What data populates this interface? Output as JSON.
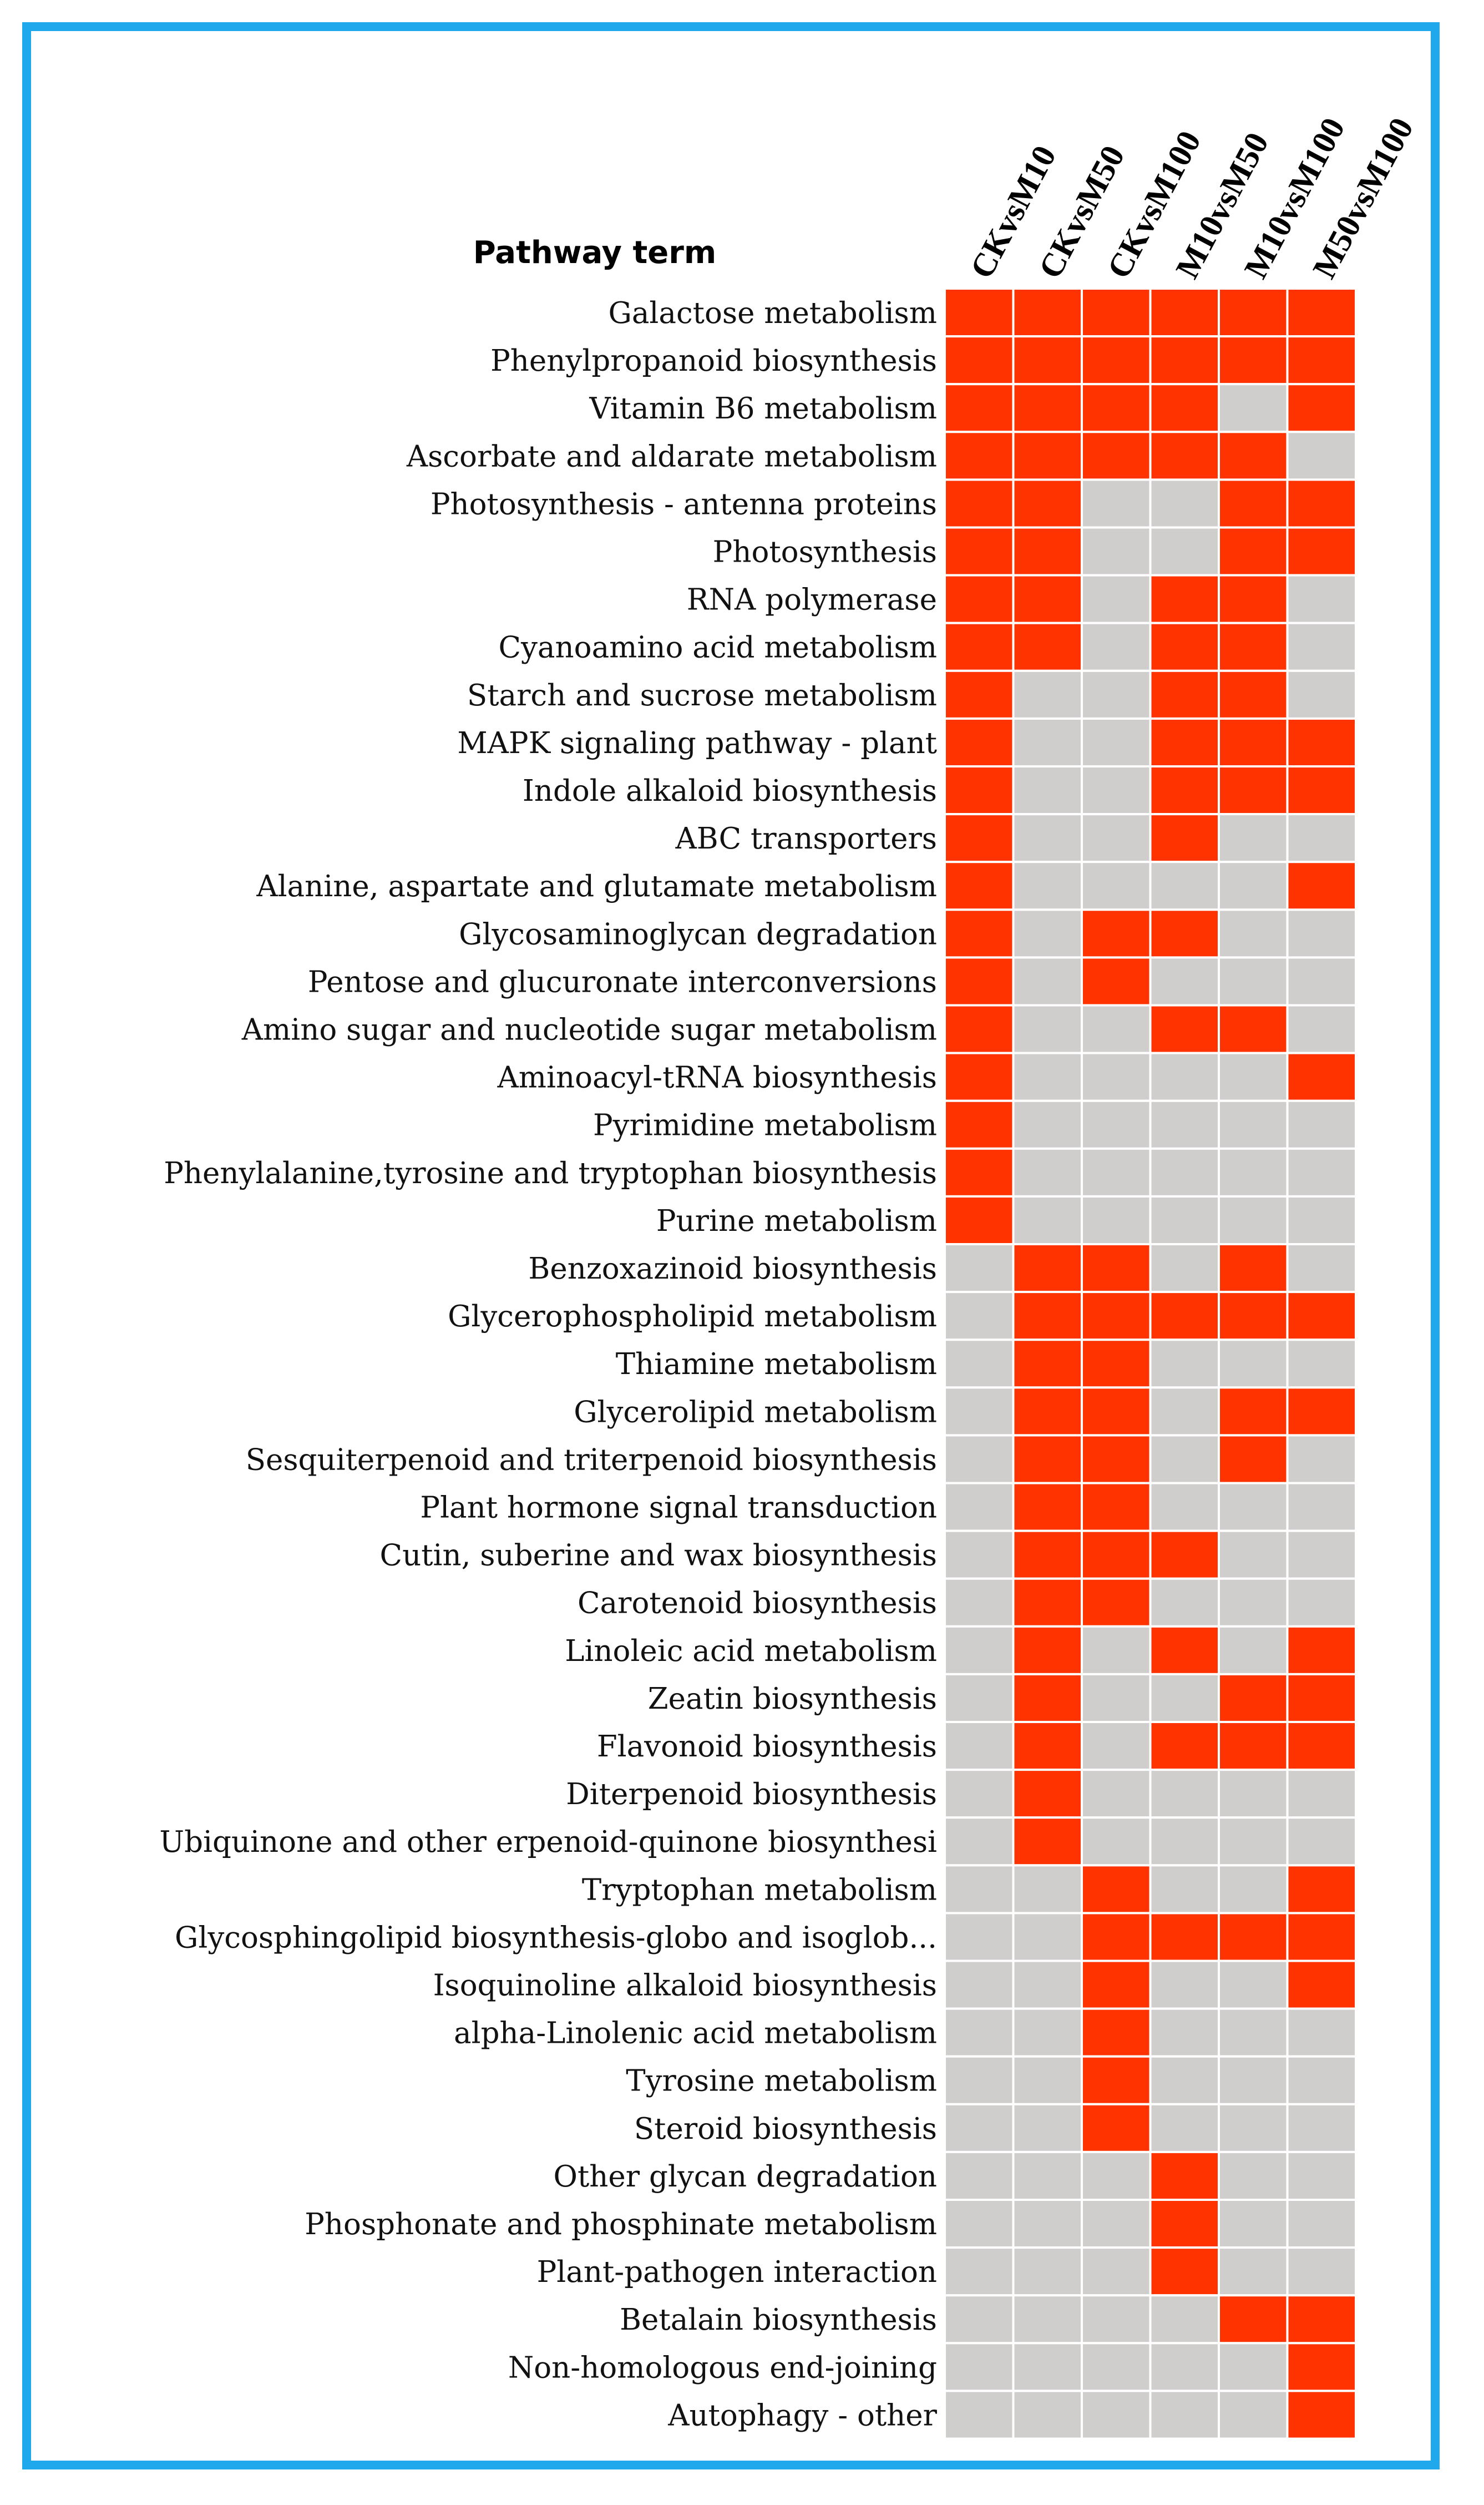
{
  "chart_data": {
    "type": "heatmap",
    "title": "",
    "row_header": "Pathway term",
    "columns": [
      "CKvsM10",
      "CKvsM50",
      "CKvsM100",
      "M10vsM50",
      "M10vsM100",
      "M50vsM100"
    ],
    "rows": [
      "Galactose metabolism",
      "Phenylpropanoid biosynthesis",
      "Vitamin B6 metabolism",
      "Ascorbate and aldarate metabolism",
      "Photosynthesis - antenna proteins",
      "Photosynthesis",
      "RNA polymerase",
      "Cyanoamino acid metabolism",
      "Starch and sucrose metabolism",
      "MAPK signaling pathway - plant",
      "Indole alkaloid biosynthesis",
      "ABC transporters",
      "Alanine, aspartate and glutamate metabolism",
      "Glycosaminoglycan degradation",
      "Pentose and glucuronate interconversions",
      "Amino sugar and nucleotide sugar metabolism",
      "Aminoacyl-tRNA biosynthesis",
      "Pyrimidine metabolism",
      "Phenylalanine,tyrosine and tryptophan biosynthesis",
      "Purine metabolism",
      "Benzoxazinoid biosynthesis",
      "Glycerophospholipid metabolism",
      "Thiamine metabolism",
      "Glycerolipid metabolism",
      "Sesquiterpenoid and triterpenoid biosynthesis",
      "Plant hormone signal transduction",
      "Cutin, suberine and wax biosynthesis",
      "Carotenoid biosynthesis",
      "Linoleic acid metabolism",
      "Zeatin biosynthesis",
      "Flavonoid biosynthesis",
      "Diterpenoid biosynthesis",
      "Ubiquinone and other erpenoid-quinone biosynthesi",
      "Tryptophan metabolism",
      "Glycosphingolipid biosynthesis-globo and isoglob...",
      "Isoquinoline alkaloid biosynthesis",
      "alpha-Linolenic acid metabolism",
      "Tyrosine metabolism",
      "Steroid biosynthesis",
      "Other glycan degradation",
      "Phosphonate and phosphinate metabolism",
      "Plant-pathogen interaction",
      "Betalain biosynthesis",
      "Non-homologous end-joining",
      "Autophagy - other"
    ],
    "values": [
      [
        1,
        1,
        1,
        1,
        1,
        1
      ],
      [
        1,
        1,
        1,
        1,
        1,
        1
      ],
      [
        1,
        1,
        1,
        1,
        0,
        1
      ],
      [
        1,
        1,
        1,
        1,
        1,
        0
      ],
      [
        1,
        1,
        0,
        0,
        1,
        1
      ],
      [
        1,
        1,
        0,
        0,
        1,
        1
      ],
      [
        1,
        1,
        0,
        1,
        1,
        0
      ],
      [
        1,
        1,
        0,
        1,
        1,
        0
      ],
      [
        1,
        0,
        0,
        1,
        1,
        0
      ],
      [
        1,
        0,
        0,
        1,
        1,
        1
      ],
      [
        1,
        0,
        0,
        1,
        1,
        1
      ],
      [
        1,
        0,
        0,
        1,
        0,
        0
      ],
      [
        1,
        0,
        0,
        0,
        0,
        1
      ],
      [
        1,
        0,
        1,
        1,
        0,
        0
      ],
      [
        1,
        0,
        1,
        0,
        0,
        0
      ],
      [
        1,
        0,
        0,
        1,
        1,
        0
      ],
      [
        1,
        0,
        0,
        0,
        0,
        1
      ],
      [
        1,
        0,
        0,
        0,
        0,
        0
      ],
      [
        1,
        0,
        0,
        0,
        0,
        0
      ],
      [
        1,
        0,
        0,
        0,
        0,
        0
      ],
      [
        0,
        1,
        1,
        0,
        1,
        0
      ],
      [
        0,
        1,
        1,
        1,
        1,
        1
      ],
      [
        0,
        1,
        1,
        0,
        0,
        0
      ],
      [
        0,
        1,
        1,
        0,
        1,
        1
      ],
      [
        0,
        1,
        1,
        0,
        1,
        0
      ],
      [
        0,
        1,
        1,
        0,
        0,
        0
      ],
      [
        0,
        1,
        1,
        1,
        0,
        0
      ],
      [
        0,
        1,
        1,
        0,
        0,
        0
      ],
      [
        0,
        1,
        0,
        1,
        0,
        1
      ],
      [
        0,
        1,
        0,
        0,
        1,
        1
      ],
      [
        0,
        1,
        0,
        1,
        1,
        1
      ],
      [
        0,
        1,
        0,
        0,
        0,
        0
      ],
      [
        0,
        1,
        0,
        0,
        0,
        0
      ],
      [
        0,
        0,
        1,
        0,
        0,
        1
      ],
      [
        0,
        0,
        1,
        1,
        1,
        1
      ],
      [
        0,
        0,
        1,
        0,
        0,
        1
      ],
      [
        0,
        0,
        1,
        0,
        0,
        0
      ],
      [
        0,
        0,
        1,
        0,
        0,
        0
      ],
      [
        0,
        0,
        1,
        0,
        0,
        0
      ],
      [
        0,
        0,
        0,
        1,
        0,
        0
      ],
      [
        0,
        0,
        0,
        1,
        0,
        0
      ],
      [
        0,
        0,
        0,
        1,
        0,
        0
      ],
      [
        0,
        0,
        0,
        0,
        1,
        1
      ],
      [
        0,
        0,
        0,
        0,
        0,
        1
      ],
      [
        0,
        0,
        0,
        0,
        0,
        1
      ]
    ],
    "color_on": "#ff3300",
    "color_off": "#d0cdcd",
    "frame_color": "#1fa8ec"
  }
}
